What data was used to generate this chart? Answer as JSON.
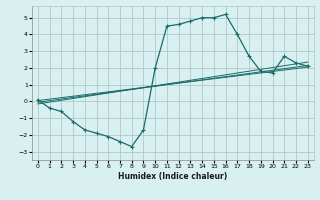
{
  "title": "",
  "xlabel": "Humidex (Indice chaleur)",
  "ylabel": "",
  "background_color": "#d8f0f0",
  "grid_color": "#b0c8c8",
  "line_color": "#1a6b6b",
  "xlim": [
    -0.5,
    23.5
  ],
  "ylim": [
    -3.5,
    5.7
  ],
  "xticks": [
    0,
    1,
    2,
    3,
    4,
    5,
    6,
    7,
    8,
    9,
    10,
    11,
    12,
    13,
    14,
    15,
    16,
    17,
    18,
    19,
    20,
    21,
    22,
    23
  ],
  "yticks": [
    -3,
    -2,
    -1,
    0,
    1,
    2,
    3,
    4,
    5
  ],
  "main_curve_x": [
    0,
    1,
    2,
    3,
    4,
    5,
    6,
    7,
    8,
    9,
    10,
    11,
    12,
    13,
    14,
    15,
    16,
    17,
    18,
    19,
    20,
    21,
    22,
    23
  ],
  "main_curve_y": [
    0.1,
    -0.4,
    -0.6,
    -1.2,
    -1.7,
    -1.9,
    -2.1,
    -2.4,
    -2.7,
    -1.7,
    2.0,
    4.5,
    4.6,
    4.8,
    5.0,
    5.0,
    5.2,
    4.0,
    2.7,
    1.8,
    1.7,
    2.7,
    2.3,
    2.1
  ],
  "trend_line1_x": [
    0,
    23
  ],
  "trend_line1_y": [
    0.05,
    2.05
  ],
  "trend_line2_x": [
    0,
    23
  ],
  "trend_line2_y": [
    -0.05,
    2.15
  ],
  "trend_line3_x": [
    0,
    23
  ],
  "trend_line3_y": [
    -0.15,
    2.35
  ]
}
